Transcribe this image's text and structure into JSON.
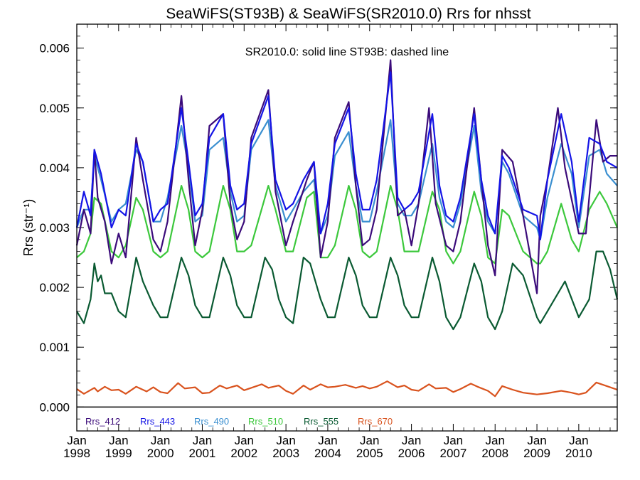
{
  "chart_data": {
    "type": "line",
    "title": "SeaWiFS(ST93B) & SeaWiFS(SR2010.0)  Rrs for nhsst",
    "ylabel": "Rrs (str⁻¹)",
    "note": "SR2010.0: solid line   ST93B: dashed line",
    "xlim": [
      1998.0,
      2010.92
    ],
    "ylim": [
      -0.0004,
      0.0064
    ],
    "yticks": [
      "0.000",
      "0.001",
      "0.002",
      "0.003",
      "0.004",
      "0.005",
      "0.006"
    ],
    "xtick_top": "Jan",
    "xtick_years": [
      "1998",
      "1999",
      "2000",
      "2001",
      "2002",
      "2003",
      "2004",
      "2005",
      "2006",
      "2007",
      "2008",
      "2009",
      "2010"
    ],
    "grid": false,
    "legend_position": "bottom-left, inside plot",
    "series": [
      {
        "name": "Rrs_412",
        "color": "#3b0b7a",
        "x": [
          1998.0,
          1998.17,
          1998.33,
          1998.42,
          1998.5,
          1998.67,
          1998.83,
          1999.0,
          1999.17,
          1999.42,
          1999.58,
          1999.83,
          2000.0,
          2000.17,
          2000.5,
          2000.67,
          2000.83,
          2001.0,
          2001.17,
          2001.5,
          2001.67,
          2001.83,
          2002.0,
          2002.17,
          2002.58,
          2002.75,
          2003.0,
          2003.17,
          2003.5,
          2003.67,
          2003.83,
          2004.0,
          2004.17,
          2004.5,
          2004.67,
          2004.83,
          2005.0,
          2005.17,
          2005.5,
          2005.67,
          2005.83,
          2006.0,
          2006.17,
          2006.42,
          2006.58,
          2006.83,
          2007.0,
          2007.17,
          2007.5,
          2007.67,
          2007.83,
          2008.0,
          2008.17,
          2008.42,
          2008.67,
          2009.0,
          2009.08,
          2009.25,
          2009.5,
          2009.67,
          2010.0,
          2010.17,
          2010.42,
          2010.58,
          2010.75,
          2010.92
        ],
        "values": [
          0.0027,
          0.0033,
          0.0029,
          0.0043,
          0.0035,
          0.0031,
          0.0024,
          0.0029,
          0.0025,
          0.0045,
          0.0038,
          0.0028,
          0.0026,
          0.0031,
          0.0052,
          0.0038,
          0.0027,
          0.0033,
          0.0047,
          0.0049,
          0.0034,
          0.0028,
          0.0031,
          0.0045,
          0.0053,
          0.0036,
          0.0027,
          0.0031,
          0.0038,
          0.0041,
          0.0025,
          0.0031,
          0.0045,
          0.0051,
          0.0037,
          0.0027,
          0.0028,
          0.0033,
          0.0058,
          0.0032,
          0.0033,
          0.0027,
          0.0034,
          0.005,
          0.0034,
          0.0027,
          0.0026,
          0.0031,
          0.005,
          0.0038,
          0.0027,
          0.0022,
          0.0043,
          0.0041,
          0.0032,
          0.0019,
          0.0032,
          0.0038,
          0.005,
          0.004,
          0.0029,
          0.0029,
          0.0048,
          0.0041,
          0.0042,
          0.0042
        ]
      },
      {
        "name": "Rrs_443",
        "color": "#1414e6",
        "x": [
          1998.0,
          1998.17,
          1998.33,
          1998.42,
          1998.58,
          1998.83,
          1999.0,
          1999.17,
          1999.42,
          1999.58,
          1999.83,
          2000.0,
          2000.17,
          2000.5,
          2000.67,
          2000.83,
          2001.0,
          2001.17,
          2001.5,
          2001.67,
          2001.83,
          2002.0,
          2002.17,
          2002.58,
          2002.75,
          2003.0,
          2003.17,
          2003.42,
          2003.67,
          2003.83,
          2004.0,
          2004.17,
          2004.5,
          2004.67,
          2004.83,
          2005.0,
          2005.17,
          2005.5,
          2005.67,
          2005.83,
          2006.0,
          2006.17,
          2006.5,
          2006.67,
          2006.83,
          2007.0,
          2007.17,
          2007.5,
          2007.67,
          2007.83,
          2008.0,
          2008.17,
          2008.33,
          2008.67,
          2009.0,
          2009.08,
          2009.25,
          2009.58,
          2009.83,
          2010.0,
          2010.25,
          2010.5,
          2010.67,
          2010.92
        ],
        "values": [
          0.003,
          0.0036,
          0.0032,
          0.0043,
          0.0039,
          0.003,
          0.0033,
          0.0032,
          0.0044,
          0.0041,
          0.0031,
          0.0033,
          0.0034,
          0.005,
          0.0041,
          0.0032,
          0.0034,
          0.0045,
          0.0049,
          0.0037,
          0.0033,
          0.0034,
          0.0044,
          0.0052,
          0.0038,
          0.0033,
          0.0034,
          0.0038,
          0.0041,
          0.0029,
          0.0034,
          0.0044,
          0.005,
          0.0039,
          0.0033,
          0.0033,
          0.0038,
          0.0056,
          0.0035,
          0.0033,
          0.0034,
          0.0036,
          0.0049,
          0.0037,
          0.0032,
          0.0031,
          0.0035,
          0.0049,
          0.0038,
          0.0032,
          0.0029,
          0.0042,
          0.004,
          0.0033,
          0.0032,
          0.0028,
          0.0038,
          0.0049,
          0.0041,
          0.0031,
          0.0045,
          0.0044,
          0.0041,
          0.004
        ]
      },
      {
        "name": "Rrs_490",
        "color": "#3a8fd0",
        "x": [
          1998.0,
          1998.17,
          1998.33,
          1998.42,
          1998.58,
          1998.83,
          1999.0,
          1999.17,
          1999.42,
          1999.58,
          1999.83,
          2000.0,
          2000.17,
          2000.5,
          2000.67,
          2000.83,
          2001.0,
          2001.17,
          2001.5,
          2001.67,
          2001.83,
          2002.0,
          2002.17,
          2002.58,
          2002.75,
          2003.0,
          2003.17,
          2003.42,
          2003.67,
          2003.83,
          2004.0,
          2004.17,
          2004.5,
          2004.67,
          2004.83,
          2005.0,
          2005.17,
          2005.5,
          2005.67,
          2005.83,
          2006.0,
          2006.17,
          2006.5,
          2006.67,
          2006.83,
          2007.0,
          2007.17,
          2007.5,
          2007.67,
          2007.83,
          2008.0,
          2008.17,
          2008.33,
          2008.67,
          2009.0,
          2009.08,
          2009.25,
          2009.58,
          2009.83,
          2010.0,
          2010.25,
          2010.5,
          2010.67,
          2010.92
        ],
        "values": [
          0.003,
          0.0033,
          0.0033,
          0.0042,
          0.0038,
          0.0031,
          0.0033,
          0.0034,
          0.0043,
          0.0041,
          0.0031,
          0.0031,
          0.0035,
          0.0047,
          0.004,
          0.0031,
          0.0032,
          0.0043,
          0.0045,
          0.0036,
          0.0031,
          0.0032,
          0.0043,
          0.0048,
          0.0037,
          0.0031,
          0.0033,
          0.0036,
          0.0038,
          0.0029,
          0.0032,
          0.0042,
          0.0046,
          0.0037,
          0.0031,
          0.0031,
          0.0036,
          0.0048,
          0.0034,
          0.0032,
          0.0032,
          0.0034,
          0.0044,
          0.0035,
          0.0031,
          0.003,
          0.0034,
          0.0047,
          0.0036,
          0.0031,
          0.0029,
          0.0041,
          0.0039,
          0.0032,
          0.003,
          0.0028,
          0.0035,
          0.0044,
          0.0039,
          0.003,
          0.0042,
          0.0043,
          0.0039,
          0.0037
        ]
      },
      {
        "name": "Rrs_510",
        "color": "#3cc83c",
        "x": [
          1998.0,
          1998.17,
          1998.33,
          1998.42,
          1998.58,
          1998.83,
          1999.0,
          1999.17,
          1999.42,
          1999.58,
          1999.83,
          2000.0,
          2000.17,
          2000.5,
          2000.67,
          2000.83,
          2001.0,
          2001.17,
          2001.5,
          2001.67,
          2001.83,
          2002.0,
          2002.17,
          2002.58,
          2002.75,
          2003.0,
          2003.17,
          2003.5,
          2003.67,
          2003.83,
          2004.0,
          2004.17,
          2004.5,
          2004.67,
          2004.83,
          2005.0,
          2005.17,
          2005.5,
          2005.67,
          2005.83,
          2006.0,
          2006.17,
          2006.5,
          2006.67,
          2006.83,
          2007.0,
          2007.17,
          2007.5,
          2007.67,
          2007.83,
          2008.0,
          2008.17,
          2008.33,
          2008.67,
          2009.0,
          2009.08,
          2009.25,
          2009.58,
          2009.83,
          2010.0,
          2010.25,
          2010.5,
          2010.67,
          2010.92
        ],
        "values": [
          0.0025,
          0.0026,
          0.0029,
          0.0035,
          0.0034,
          0.0026,
          0.0025,
          0.0027,
          0.0035,
          0.0033,
          0.0026,
          0.0025,
          0.0026,
          0.0037,
          0.0033,
          0.0026,
          0.0025,
          0.0026,
          0.0037,
          0.0033,
          0.0026,
          0.0026,
          0.0027,
          0.0037,
          0.0033,
          0.0026,
          0.0026,
          0.0035,
          0.0036,
          0.0025,
          0.0025,
          0.0027,
          0.0037,
          0.0033,
          0.0026,
          0.0025,
          0.0026,
          0.0037,
          0.0033,
          0.0026,
          0.0026,
          0.0026,
          0.0036,
          0.0033,
          0.0026,
          0.0024,
          0.0026,
          0.0036,
          0.0032,
          0.0025,
          0.0024,
          0.0033,
          0.0032,
          0.0026,
          0.0024,
          0.0024,
          0.0026,
          0.0034,
          0.0028,
          0.0026,
          0.0033,
          0.0036,
          0.0034,
          0.003
        ]
      },
      {
        "name": "Rrs_555",
        "color": "#0a5a32",
        "x": [
          1998.0,
          1998.17,
          1998.33,
          1998.42,
          1998.5,
          1998.58,
          1998.67,
          1998.83,
          1999.0,
          1999.17,
          1999.42,
          1999.58,
          1999.83,
          2000.0,
          2000.17,
          2000.5,
          2000.67,
          2000.83,
          2001.0,
          2001.17,
          2001.5,
          2001.67,
          2001.83,
          2002.0,
          2002.17,
          2002.5,
          2002.67,
          2002.83,
          2003.0,
          2003.17,
          2003.42,
          2003.58,
          2003.83,
          2004.0,
          2004.17,
          2004.5,
          2004.67,
          2004.83,
          2005.0,
          2005.17,
          2005.5,
          2005.67,
          2005.83,
          2006.0,
          2006.17,
          2006.5,
          2006.67,
          2006.83,
          2007.0,
          2007.17,
          2007.5,
          2007.67,
          2007.83,
          2008.0,
          2008.17,
          2008.42,
          2008.67,
          2009.0,
          2009.08,
          2009.25,
          2009.67,
          2010.0,
          2010.25,
          2010.42,
          2010.58,
          2010.75,
          2010.92
        ],
        "values": [
          0.0016,
          0.0014,
          0.0018,
          0.0024,
          0.0021,
          0.0022,
          0.0019,
          0.0019,
          0.0016,
          0.0015,
          0.0025,
          0.0021,
          0.0017,
          0.0015,
          0.0015,
          0.0025,
          0.0022,
          0.0017,
          0.0015,
          0.0015,
          0.0025,
          0.0022,
          0.0017,
          0.0015,
          0.0015,
          0.0025,
          0.0023,
          0.0018,
          0.0015,
          0.0014,
          0.0025,
          0.0024,
          0.0018,
          0.0015,
          0.0015,
          0.0025,
          0.0022,
          0.0017,
          0.0015,
          0.0015,
          0.0025,
          0.0022,
          0.0017,
          0.0015,
          0.0015,
          0.0025,
          0.0021,
          0.0015,
          0.0013,
          0.0015,
          0.0024,
          0.0021,
          0.0015,
          0.0013,
          0.0016,
          0.0024,
          0.0022,
          0.0015,
          0.0014,
          0.0016,
          0.0021,
          0.0015,
          0.0018,
          0.0026,
          0.0026,
          0.0023,
          0.0018
        ]
      },
      {
        "name": "Rrs_670",
        "color": "#d9531e",
        "x": [
          1998.0,
          1998.17,
          1998.42,
          1998.5,
          1998.67,
          1998.83,
          1999.0,
          1999.17,
          1999.42,
          1999.67,
          1999.83,
          2000.0,
          2000.17,
          2000.42,
          2000.58,
          2000.83,
          2001.0,
          2001.17,
          2001.42,
          2001.58,
          2001.83,
          2002.0,
          2002.17,
          2002.42,
          2002.58,
          2002.83,
          2003.0,
          2003.17,
          2003.42,
          2003.58,
          2003.83,
          2004.0,
          2004.17,
          2004.42,
          2004.67,
          2004.83,
          2005.0,
          2005.17,
          2005.42,
          2005.67,
          2005.83,
          2006.0,
          2006.17,
          2006.42,
          2006.58,
          2006.83,
          2007.0,
          2007.17,
          2007.42,
          2007.58,
          2007.83,
          2008.0,
          2008.17,
          2008.42,
          2008.67,
          2009.0,
          2009.25,
          2009.58,
          2009.83,
          2010.0,
          2010.17,
          2010.42,
          2010.67,
          2010.92
        ],
        "values": [
          0.0003,
          0.00022,
          0.00032,
          0.00026,
          0.00034,
          0.00028,
          0.00029,
          0.00022,
          0.00034,
          0.00026,
          0.00033,
          0.00025,
          0.00023,
          0.0004,
          0.00031,
          0.00033,
          0.00023,
          0.00024,
          0.00036,
          0.00031,
          0.00036,
          0.00028,
          0.00032,
          0.00038,
          0.00032,
          0.00036,
          0.00027,
          0.00022,
          0.00036,
          0.00029,
          0.00038,
          0.00033,
          0.00034,
          0.00037,
          0.00032,
          0.00035,
          0.00031,
          0.00034,
          0.00043,
          0.00033,
          0.00036,
          0.00029,
          0.00027,
          0.00038,
          0.00031,
          0.00032,
          0.00025,
          0.0003,
          0.00039,
          0.00034,
          0.00027,
          0.00018,
          0.00035,
          0.00029,
          0.00024,
          0.00021,
          0.00023,
          0.00027,
          0.00024,
          0.00021,
          0.00024,
          0.00041,
          0.00035,
          0.00029
        ]
      }
    ]
  }
}
